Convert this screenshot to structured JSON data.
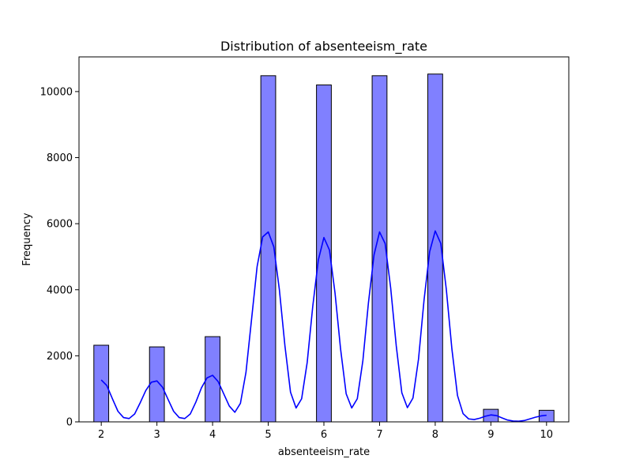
{
  "chart_data": {
    "type": "bar",
    "title": "Distribution of absenteeism_rate",
    "xlabel": "absenteeism_rate",
    "ylabel": "Frequency",
    "xlim": [
      1.6,
      10.4
    ],
    "ylim": [
      0,
      11050
    ],
    "x_ticks": [
      2,
      3,
      4,
      5,
      6,
      7,
      8,
      9,
      10
    ],
    "y_ticks": [
      0,
      2000,
      4000,
      6000,
      8000,
      10000
    ],
    "bin_width": 0.2667,
    "bars": [
      {
        "x": 2,
        "value": 2320
      },
      {
        "x": 3,
        "value": 2270
      },
      {
        "x": 4,
        "value": 2580
      },
      {
        "x": 5,
        "value": 10480
      },
      {
        "x": 6,
        "value": 10200
      },
      {
        "x": 7,
        "value": 10480
      },
      {
        "x": 8,
        "value": 10530
      },
      {
        "x": 9,
        "value": 380
      },
      {
        "x": 10,
        "value": 350
      }
    ],
    "kde_curve": {
      "x": [
        2.0,
        2.1,
        2.2,
        2.3,
        2.4,
        2.5,
        2.6,
        2.7,
        2.8,
        2.9,
        3.0,
        3.1,
        3.2,
        3.3,
        3.4,
        3.5,
        3.6,
        3.7,
        3.8,
        3.9,
        4.0,
        4.1,
        4.2,
        4.3,
        4.4,
        4.5,
        4.6,
        4.7,
        4.8,
        4.9,
        5.0,
        5.1,
        5.2,
        5.3,
        5.4,
        5.5,
        5.6,
        5.7,
        5.8,
        5.9,
        6.0,
        6.1,
        6.2,
        6.3,
        6.4,
        6.5,
        6.6,
        6.7,
        6.8,
        6.9,
        7.0,
        7.1,
        7.2,
        7.3,
        7.4,
        7.5,
        7.6,
        7.7,
        7.8,
        7.9,
        8.0,
        8.1,
        8.2,
        8.3,
        8.4,
        8.5,
        8.6,
        8.7,
        8.8,
        8.9,
        9.0,
        9.1,
        9.2,
        9.3,
        9.4,
        9.5,
        9.6,
        9.7,
        9.8,
        9.9,
        10.0
      ],
      "y": [
        1270,
        1100,
        700,
        320,
        130,
        100,
        240,
        580,
        950,
        1200,
        1240,
        1050,
        680,
        320,
        130,
        100,
        240,
        600,
        1030,
        1330,
        1410,
        1220,
        850,
        480,
        290,
        560,
        1500,
        3100,
        4700,
        5600,
        5750,
        5300,
        4000,
        2300,
        900,
        420,
        700,
        1800,
        3500,
        4900,
        5580,
        5200,
        3900,
        2200,
        850,
        420,
        700,
        1850,
        3600,
        5050,
        5750,
        5400,
        4050,
        2300,
        880,
        430,
        720,
        1900,
        3700,
        5150,
        5780,
        5400,
        4000,
        2200,
        800,
        250,
        90,
        70,
        110,
        170,
        210,
        190,
        120,
        55,
        25,
        20,
        40,
        90,
        140,
        180,
        200
      ]
    },
    "colors": {
      "bar_fill": "#8080ff",
      "bar_edge": "#000000",
      "kde_line": "#0000ff"
    },
    "grid": false,
    "legend": "none"
  }
}
